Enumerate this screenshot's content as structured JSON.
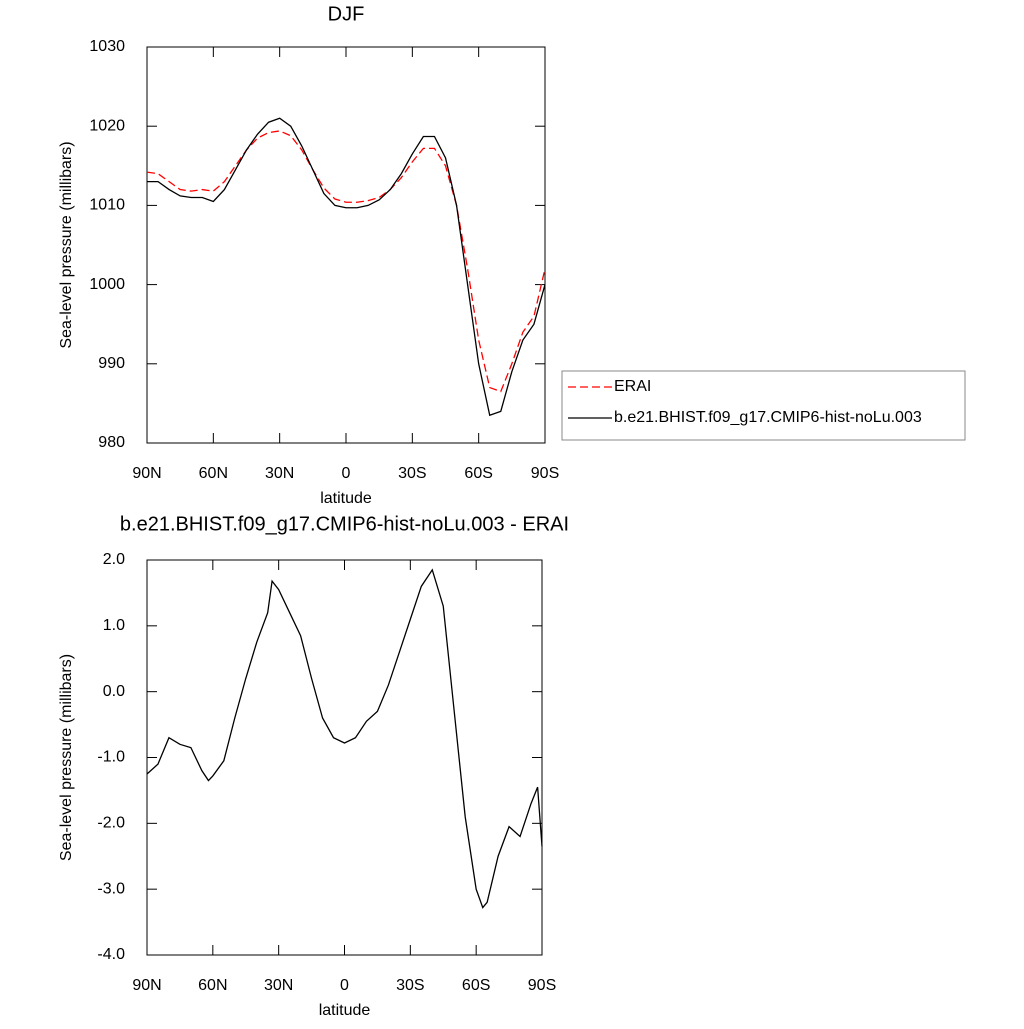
{
  "chart_data": [
    {
      "type": "line",
      "title": "DJF",
      "xlabel": "latitude",
      "ylabel": "Sea-level pressure (millibars)",
      "x": [
        90,
        85,
        80,
        75,
        70,
        65,
        60,
        55,
        50,
        45,
        40,
        35,
        30,
        25,
        20,
        15,
        10,
        5,
        0,
        -5,
        -10,
        -15,
        -20,
        -25,
        -30,
        -35,
        -40,
        -45,
        -50,
        -55,
        -60,
        -65,
        -70,
        -75,
        -80,
        -85,
        -90
      ],
      "series": [
        {
          "name": "ERAI",
          "color": "#ff0000",
          "dashed": true,
          "values": [
            1014.2,
            1014,
            1013,
            1012,
            1011.8,
            1012,
            1011.8,
            1013,
            1015,
            1017,
            1018.5,
            1019.2,
            1019.4,
            1018.8,
            1017,
            1014.5,
            1012.2,
            1010.8,
            1010.4,
            1010.4,
            1010.6,
            1011,
            1012,
            1013.5,
            1015.5,
            1017.2,
            1017.2,
            1015,
            1010,
            1002,
            993,
            987,
            986.5,
            990,
            994,
            996,
            1002
          ]
        },
        {
          "name": "b.e21.BHIST.f09_g17.CMIP6-hist-noLu.003",
          "color": "#000000",
          "dashed": false,
          "values": [
            1013,
            1013,
            1012,
            1011.2,
            1011,
            1011,
            1010.5,
            1012,
            1014.5,
            1017,
            1019,
            1020.5,
            1021,
            1020,
            1017.5,
            1014.5,
            1011.5,
            1010,
            1009.7,
            1009.7,
            1010,
            1010.7,
            1012,
            1014,
            1016.5,
            1018.7,
            1018.7,
            1016,
            1010,
            1000,
            990,
            983.5,
            984,
            989,
            993,
            995,
            1000
          ]
        }
      ],
      "xlim": [
        90,
        -90
      ],
      "xticks": [
        {
          "value": 90,
          "label": "90N"
        },
        {
          "value": 60,
          "label": "60N"
        },
        {
          "value": 30,
          "label": "30N"
        },
        0,
        {
          "value": -30,
          "label": "30S"
        },
        {
          "value": -60,
          "label": "60S"
        },
        {
          "value": -90,
          "label": "90S"
        }
      ],
      "ylim": [
        980,
        1030
      ],
      "yticks": [
        980,
        990,
        1000,
        1010,
        1020,
        1030
      ],
      "legend": "right"
    },
    {
      "type": "line",
      "title": "b.e21.BHIST.f09_g17.CMIP6-hist-noLu.003 - ERAI",
      "xlabel": "latitude",
      "ylabel": "Sea-level pressure (millibars)",
      "x": [
        90,
        85,
        80,
        75,
        70,
        65,
        62,
        60,
        55,
        50,
        45,
        40,
        35,
        33,
        30,
        25,
        20,
        15,
        10,
        5,
        0,
        -5,
        -10,
        -15,
        -20,
        -25,
        -30,
        -35,
        -40,
        -45,
        -50,
        -55,
        -60,
        -63,
        -65,
        -70,
        -75,
        -80,
        -85,
        -88,
        -90
      ],
      "values": [
        -1.25,
        -1.1,
        -0.7,
        -0.8,
        -0.85,
        -1.2,
        -1.35,
        -1.28,
        -1.05,
        -0.4,
        0.2,
        0.75,
        1.2,
        1.68,
        1.55,
        1.2,
        0.85,
        0.2,
        -0.4,
        -0.7,
        -0.78,
        -0.7,
        -0.45,
        -0.3,
        0.1,
        0.6,
        1.1,
        1.6,
        1.85,
        1.3,
        -0.3,
        -1.9,
        -3.0,
        -3.28,
        -3.2,
        -2.5,
        -2.05,
        -2.2,
        -1.7,
        -1.45,
        -2.35
      ],
      "color": "#000000",
      "xlim": [
        90,
        -90
      ],
      "xticks": [
        {
          "value": 90,
          "label": "90N"
        },
        {
          "value": 60,
          "label": "60N"
        },
        {
          "value": 30,
          "label": "30N"
        },
        0,
        {
          "value": -30,
          "label": "30S"
        },
        {
          "value": -60,
          "label": "60S"
        },
        {
          "value": -90,
          "label": "90S"
        }
      ],
      "ylim": [
        -4,
        2
      ],
      "yticks": [
        {
          "value": -4,
          "label": "-4.0"
        },
        {
          "value": -3,
          "label": "-3.0"
        },
        {
          "value": -2,
          "label": "-2.0"
        },
        {
          "value": -1,
          "label": "-1.0"
        },
        {
          "value": 0,
          "label": "0.0"
        },
        {
          "value": 1,
          "label": "1.0"
        },
        {
          "value": 2,
          "label": "2.0"
        }
      ]
    }
  ]
}
